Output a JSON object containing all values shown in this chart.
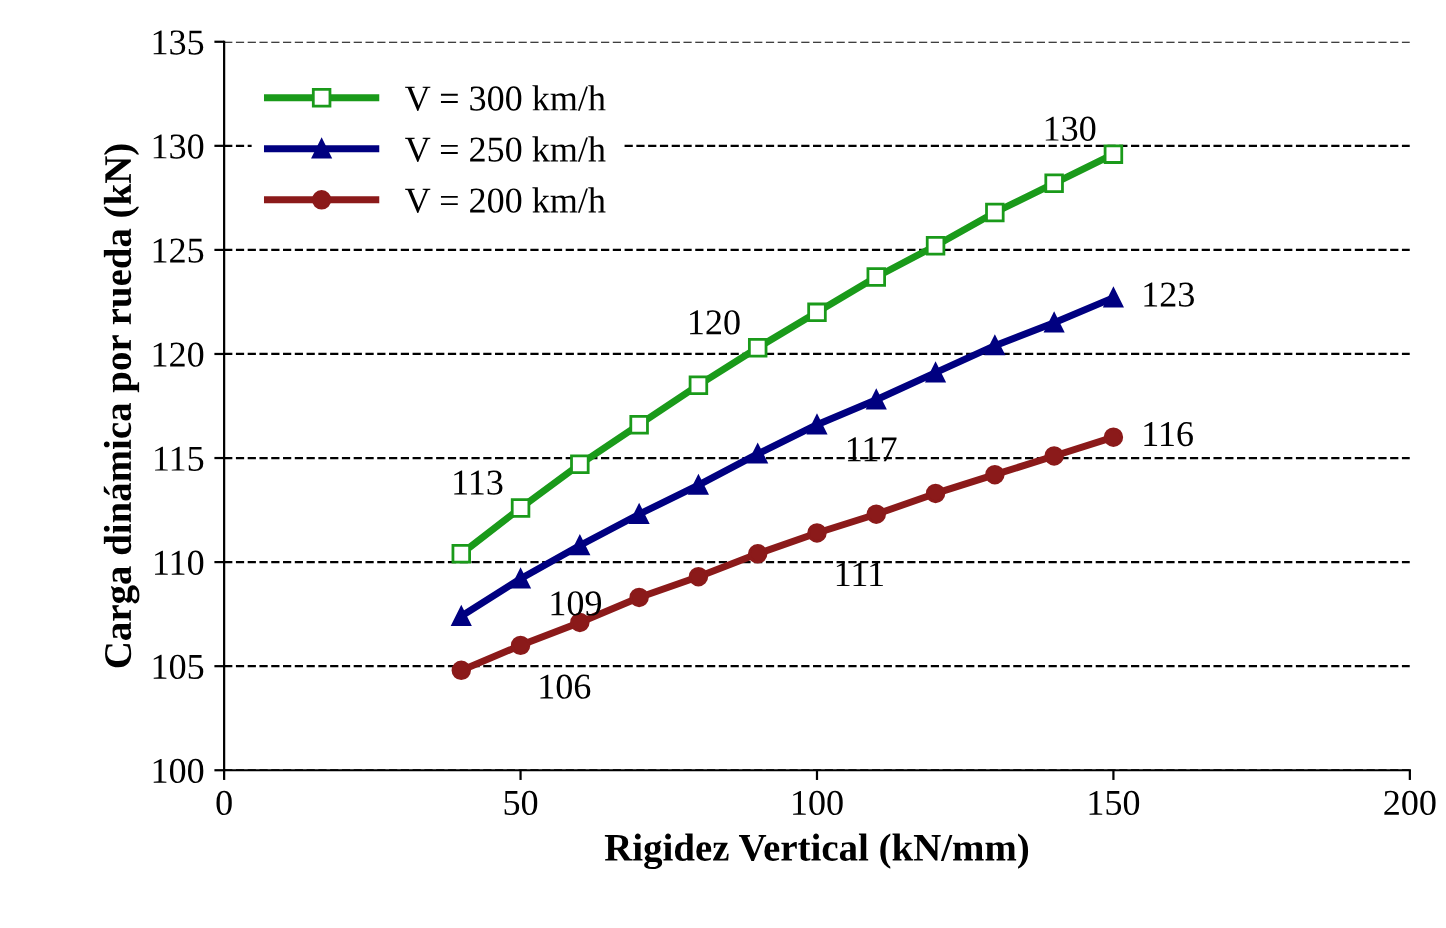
{
  "chart_data": {
    "type": "line",
    "xlabel": "Rigidez Vertical (kN/mm)",
    "ylabel": "Carga dinámica por rueda (kN)",
    "x": [
      40,
      50,
      60,
      70,
      80,
      90,
      100,
      110,
      120,
      130,
      140,
      150
    ],
    "xlim": [
      0,
      200
    ],
    "xticks": [
      0,
      50,
      100,
      150,
      200
    ],
    "ylim": [
      100,
      135
    ],
    "yticks": [
      100,
      105,
      110,
      115,
      120,
      125,
      130,
      135
    ],
    "grid": "y",
    "legend": "top left",
    "line_style": "solid",
    "series": [
      {
        "name": "V = 300 km/h",
        "color": "#1a9a1a",
        "marker": "square",
        "values": [
          110.4,
          112.6,
          114.7,
          116.6,
          118.5,
          120.3,
          122.0,
          123.7,
          125.2,
          126.8,
          128.2,
          129.6
        ],
        "value_labels": [
          null,
          "113",
          null,
          null,
          null,
          "120",
          null,
          null,
          null,
          null,
          null,
          "130"
        ]
      },
      {
        "name": "V = 250 km/h",
        "color": "#000080",
        "marker": "triangle",
        "values": [
          107.4,
          109.2,
          110.8,
          112.3,
          113.7,
          115.2,
          116.6,
          117.8,
          119.1,
          120.4,
          121.5,
          122.7
        ],
        "value_labels": [
          null,
          "109",
          null,
          null,
          null,
          null,
          "117",
          null,
          null,
          null,
          null,
          "123"
        ]
      },
      {
        "name": "V = 200 km/h",
        "color": "#8b1a1a",
        "marker": "circle",
        "values": [
          104.8,
          106.0,
          107.1,
          108.3,
          109.3,
          110.4,
          111.4,
          112.3,
          113.3,
          114.2,
          115.1,
          116.0
        ],
        "value_labels": [
          null,
          "106",
          null,
          null,
          null,
          null,
          "111",
          null,
          null,
          null,
          null,
          "116"
        ]
      }
    ]
  }
}
